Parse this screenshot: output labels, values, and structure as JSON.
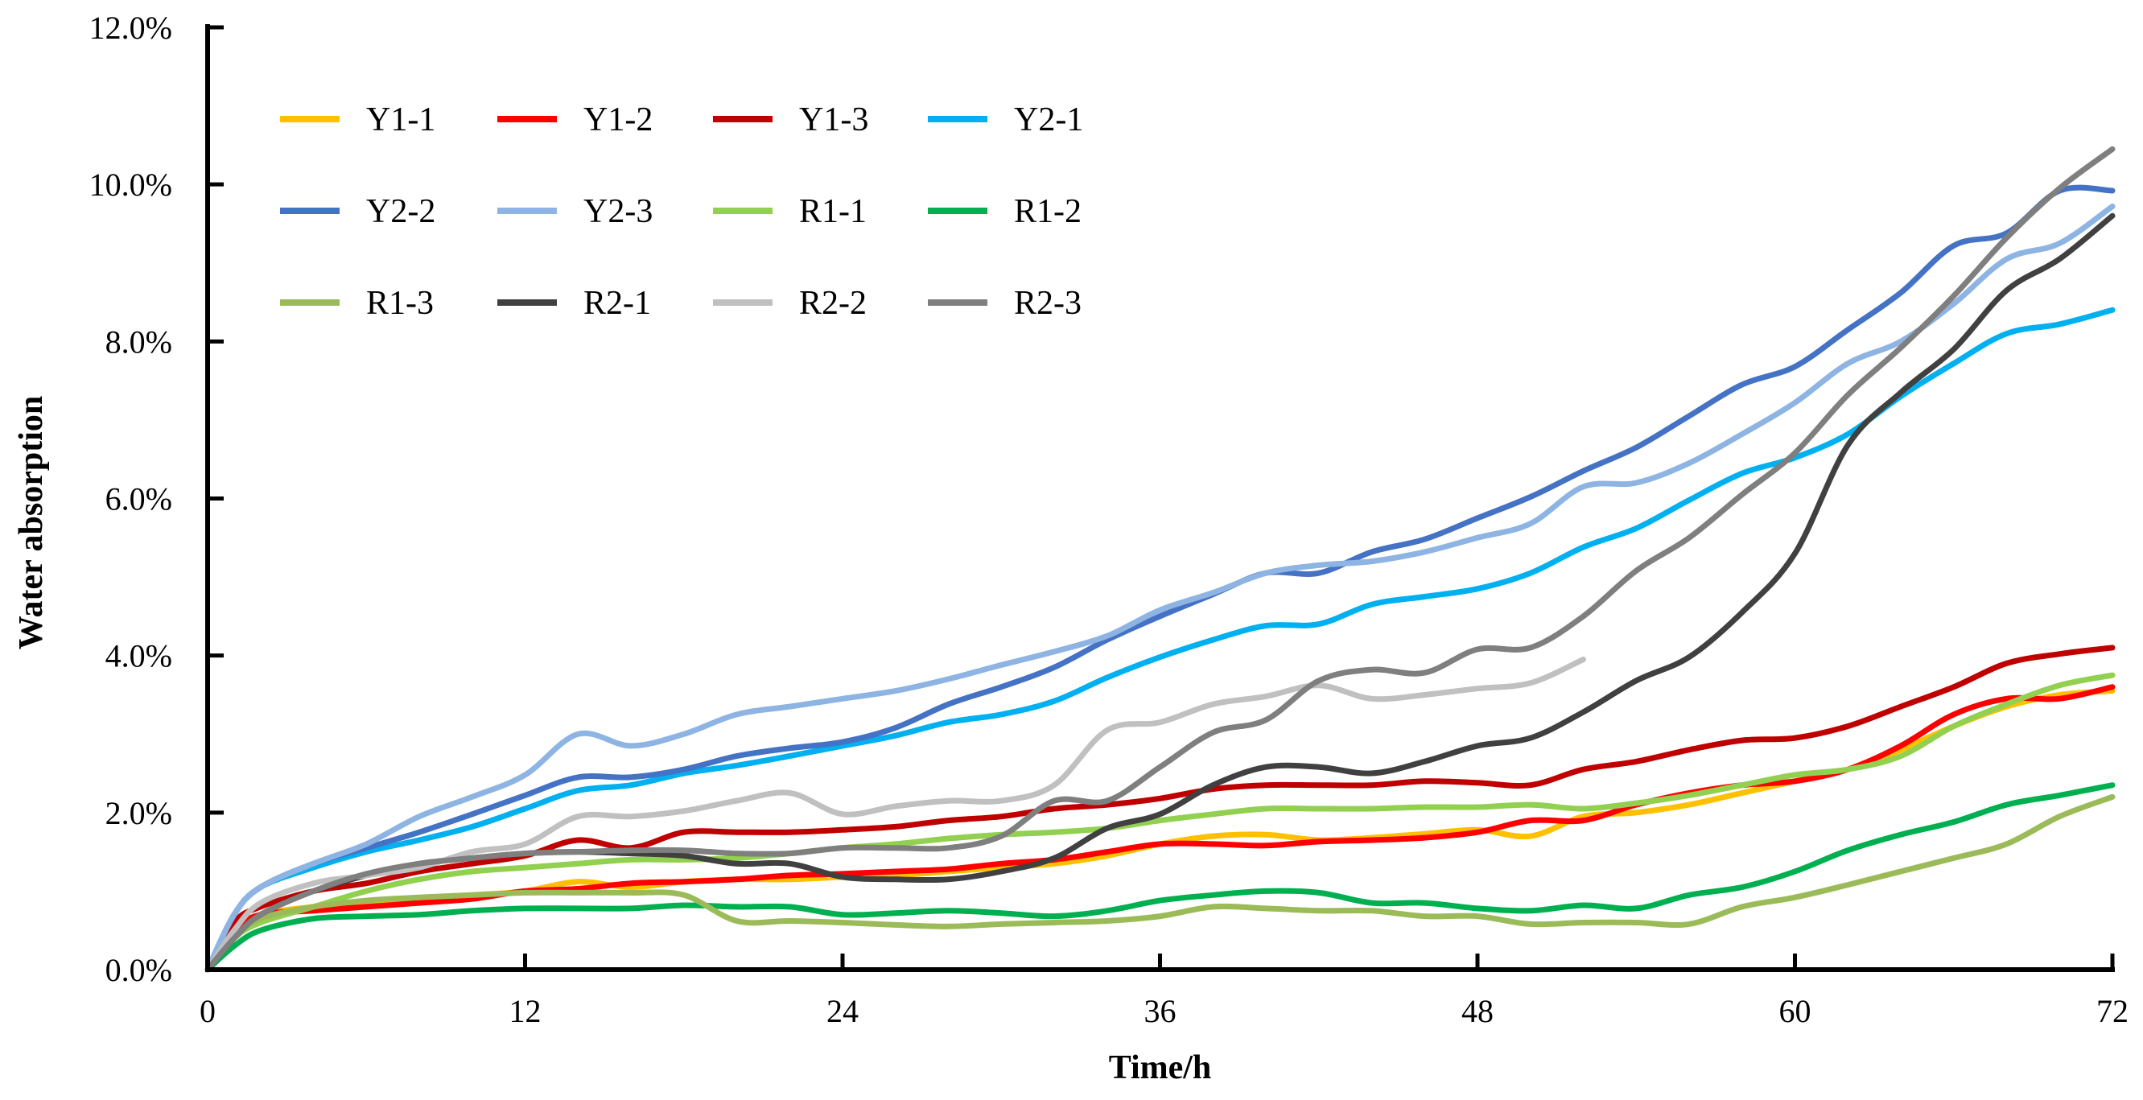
{
  "chart_data": {
    "type": "line",
    "xlabel": "Time/h",
    "ylabel": "Water absorption",
    "xlim": [
      0,
      72
    ],
    "ylim": [
      0,
      0.12
    ],
    "x_ticks": [
      "0",
      "12",
      "24",
      "36",
      "48",
      "60",
      "72"
    ],
    "y_ticks": [
      "0.0%",
      "2.0%",
      "4.0%",
      "6.0%",
      "8.0%",
      "10.0%",
      "12.0%"
    ],
    "grid": false,
    "legend_position": "top-left",
    "series": [
      {
        "name": "Y1-1",
        "color": "#ffc000",
        "x": [
          0,
          1,
          2,
          4,
          6,
          8,
          10,
          12,
          14,
          16,
          18,
          20,
          22,
          24,
          26,
          28,
          30,
          32,
          34,
          36,
          38,
          40,
          42,
          44,
          46,
          48,
          50,
          52,
          54,
          56,
          58,
          60,
          62,
          64,
          66,
          68,
          70,
          72
        ],
        "y": [
          0,
          0.005,
          0.007,
          0.008,
          0.0085,
          0.009,
          0.0095,
          0.01,
          0.0112,
          0.0105,
          0.0112,
          0.0115,
          0.0115,
          0.0118,
          0.012,
          0.0125,
          0.013,
          0.0135,
          0.0145,
          0.016,
          0.017,
          0.0172,
          0.0165,
          0.0168,
          0.0173,
          0.0178,
          0.017,
          0.0195,
          0.02,
          0.021,
          0.0225,
          0.024,
          0.0255,
          0.028,
          0.031,
          0.0335,
          0.035,
          0.0355
        ]
      },
      {
        "name": "Y1-2",
        "color": "#ff0000",
        "x": [
          0,
          1,
          2,
          4,
          6,
          8,
          10,
          12,
          14,
          16,
          18,
          20,
          22,
          24,
          26,
          28,
          30,
          32,
          34,
          36,
          38,
          40,
          42,
          44,
          46,
          48,
          50,
          52,
          54,
          56,
          58,
          60,
          62,
          64,
          66,
          68,
          70,
          72
        ],
        "y": [
          0,
          0.005,
          0.007,
          0.0075,
          0.008,
          0.0085,
          0.009,
          0.01,
          0.0103,
          0.011,
          0.0112,
          0.0115,
          0.012,
          0.0122,
          0.0125,
          0.0128,
          0.0135,
          0.014,
          0.015,
          0.016,
          0.016,
          0.0158,
          0.0163,
          0.0165,
          0.0168,
          0.0175,
          0.019,
          0.019,
          0.021,
          0.0225,
          0.0235,
          0.024,
          0.0255,
          0.0285,
          0.0325,
          0.0345,
          0.0345,
          0.036
        ]
      },
      {
        "name": "Y1-3",
        "color": "#c00000",
        "x": [
          0,
          1,
          2,
          4,
          6,
          8,
          10,
          12,
          14,
          16,
          18,
          20,
          22,
          24,
          26,
          28,
          30,
          32,
          34,
          36,
          38,
          40,
          42,
          44,
          46,
          48,
          50,
          52,
          54,
          56,
          58,
          60,
          62,
          64,
          66,
          68,
          70,
          72
        ],
        "y": [
          0,
          0.006,
          0.008,
          0.01,
          0.011,
          0.0125,
          0.0135,
          0.0145,
          0.0165,
          0.0155,
          0.0175,
          0.0175,
          0.0175,
          0.0178,
          0.0182,
          0.019,
          0.0195,
          0.0205,
          0.021,
          0.0218,
          0.023,
          0.0235,
          0.0235,
          0.0235,
          0.024,
          0.0238,
          0.0235,
          0.0255,
          0.0265,
          0.028,
          0.0292,
          0.0295,
          0.031,
          0.0335,
          0.036,
          0.039,
          0.0402,
          0.041
        ]
      },
      {
        "name": "Y2-1",
        "color": "#00b0f0",
        "x": [
          0,
          1,
          2,
          4,
          6,
          8,
          10,
          12,
          14,
          16,
          18,
          20,
          22,
          24,
          26,
          28,
          30,
          32,
          34,
          36,
          38,
          40,
          42,
          44,
          46,
          48,
          50,
          52,
          54,
          56,
          58,
          60,
          62,
          64,
          66,
          68,
          70,
          72
        ],
        "y": [
          0,
          0.007,
          0.0105,
          0.013,
          0.015,
          0.0165,
          0.0182,
          0.0205,
          0.0228,
          0.0235,
          0.025,
          0.026,
          0.0272,
          0.0285,
          0.0298,
          0.0315,
          0.0325,
          0.0342,
          0.0372,
          0.0398,
          0.042,
          0.0438,
          0.044,
          0.0465,
          0.0475,
          0.0485,
          0.0505,
          0.0538,
          0.0562,
          0.0598,
          0.0632,
          0.0652,
          0.0682,
          0.073,
          0.0772,
          0.081,
          0.0822,
          0.084
        ]
      },
      {
        "name": "Y2-2",
        "color": "#4472c4",
        "x": [
          0,
          1,
          2,
          4,
          6,
          8,
          10,
          12,
          14,
          16,
          18,
          20,
          22,
          24,
          26,
          28,
          30,
          32,
          34,
          36,
          38,
          40,
          42,
          44,
          46,
          48,
          50,
          52,
          54,
          56,
          58,
          60,
          62,
          64,
          66,
          68,
          70,
          72
        ],
        "y": [
          0,
          0.007,
          0.0105,
          0.0135,
          0.0155,
          0.0175,
          0.0198,
          0.0222,
          0.0245,
          0.0245,
          0.0255,
          0.0272,
          0.0282,
          0.029,
          0.0308,
          0.0338,
          0.036,
          0.0385,
          0.042,
          0.045,
          0.0478,
          0.0505,
          0.0505,
          0.0532,
          0.0548,
          0.0575,
          0.0602,
          0.0635,
          0.0665,
          0.0705,
          0.0745,
          0.0768,
          0.0815,
          0.0862,
          0.0922,
          0.0938,
          0.0992,
          0.0992
        ]
      },
      {
        "name": "Y2-3",
        "color": "#8eb4e3",
        "x": [
          0,
          1,
          2,
          4,
          6,
          8,
          10,
          12,
          14,
          16,
          18,
          20,
          22,
          24,
          26,
          28,
          30,
          32,
          34,
          36,
          38,
          40,
          42,
          44,
          46,
          48,
          50,
          52,
          54,
          56,
          58,
          60,
          62,
          64,
          66,
          68,
          70,
          72
        ],
        "y": [
          0,
          0.007,
          0.0105,
          0.0135,
          0.016,
          0.0195,
          0.022,
          0.0248,
          0.03,
          0.0285,
          0.03,
          0.0325,
          0.0335,
          0.0345,
          0.0355,
          0.037,
          0.0388,
          0.0405,
          0.0425,
          0.0458,
          0.048,
          0.0505,
          0.0515,
          0.052,
          0.0532,
          0.055,
          0.0568,
          0.0615,
          0.062,
          0.0645,
          0.0682,
          0.0722,
          0.0772,
          0.08,
          0.0848,
          0.0905,
          0.0925,
          0.0972
        ]
      },
      {
        "name": "R1-1",
        "color": "#92d050",
        "x": [
          0,
          1,
          2,
          4,
          6,
          8,
          10,
          12,
          14,
          16,
          18,
          20,
          22,
          24,
          26,
          28,
          30,
          32,
          34,
          36,
          38,
          40,
          42,
          44,
          46,
          48,
          50,
          52,
          54,
          56,
          58,
          60,
          62,
          64,
          66,
          68,
          70,
          72
        ],
        "y": [
          0,
          0.004,
          0.006,
          0.008,
          0.01,
          0.0115,
          0.0125,
          0.013,
          0.0135,
          0.014,
          0.014,
          0.0142,
          0.0148,
          0.0155,
          0.016,
          0.0167,
          0.0172,
          0.0175,
          0.018,
          0.019,
          0.0198,
          0.0205,
          0.0205,
          0.0205,
          0.0207,
          0.0207,
          0.021,
          0.0205,
          0.0212,
          0.0222,
          0.0235,
          0.0248,
          0.0255,
          0.0272,
          0.031,
          0.0338,
          0.0362,
          0.0375
        ]
      },
      {
        "name": "R1-2",
        "color": "#00b050",
        "x": [
          0,
          1,
          2,
          4,
          6,
          8,
          10,
          12,
          14,
          16,
          18,
          20,
          22,
          24,
          26,
          28,
          30,
          32,
          34,
          36,
          38,
          40,
          42,
          44,
          46,
          48,
          50,
          52,
          54,
          56,
          58,
          60,
          62,
          64,
          66,
          68,
          70,
          72
        ],
        "y": [
          0,
          0.003,
          0.005,
          0.0065,
          0.0068,
          0.007,
          0.0075,
          0.0078,
          0.0078,
          0.0078,
          0.0082,
          0.008,
          0.008,
          0.007,
          0.0072,
          0.0075,
          0.0072,
          0.0068,
          0.0075,
          0.0088,
          0.0095,
          0.01,
          0.0098,
          0.0085,
          0.0085,
          0.0078,
          0.0075,
          0.0082,
          0.0078,
          0.0095,
          0.0105,
          0.0125,
          0.0152,
          0.0172,
          0.0188,
          0.021,
          0.0222,
          0.0235
        ]
      },
      {
        "name": "R1-3",
        "color": "#9bbb59",
        "x": [
          0,
          1,
          2,
          4,
          6,
          8,
          10,
          12,
          14,
          16,
          18,
          20,
          22,
          24,
          26,
          28,
          30,
          32,
          34,
          36,
          38,
          40,
          42,
          44,
          46,
          48,
          50,
          52,
          54,
          56,
          58,
          60,
          62,
          64,
          66,
          68,
          70,
          72
        ],
        "y": [
          0,
          0.004,
          0.0065,
          0.008,
          0.0088,
          0.0092,
          0.0095,
          0.0098,
          0.0098,
          0.0098,
          0.0095,
          0.0062,
          0.0062,
          0.006,
          0.0057,
          0.0055,
          0.0058,
          0.006,
          0.0062,
          0.0068,
          0.008,
          0.0078,
          0.0075,
          0.0075,
          0.0068,
          0.0068,
          0.0058,
          0.006,
          0.006,
          0.0058,
          0.008,
          0.0092,
          0.0108,
          0.0125,
          0.0142,
          0.016,
          0.0195,
          0.022
        ]
      },
      {
        "name": "R2-1",
        "color": "#404040",
        "x": [
          0,
          1,
          2,
          4,
          6,
          8,
          10,
          12,
          14,
          16,
          18,
          20,
          22,
          24,
          26,
          28,
          30,
          32,
          34,
          36,
          38,
          40,
          42,
          44,
          46,
          48,
          50,
          52,
          54,
          56,
          58,
          60,
          62,
          64,
          66,
          68,
          70,
          72
        ],
        "y": [
          0,
          0.004,
          0.007,
          0.01,
          0.012,
          0.0135,
          0.0142,
          0.0148,
          0.015,
          0.0148,
          0.0145,
          0.0135,
          0.0135,
          0.0118,
          0.0115,
          0.0115,
          0.0125,
          0.0142,
          0.018,
          0.0198,
          0.0235,
          0.0258,
          0.0258,
          0.025,
          0.0265,
          0.0285,
          0.0295,
          0.0328,
          0.0368,
          0.0398,
          0.0455,
          0.053,
          0.0668,
          0.0735,
          0.079,
          0.0865,
          0.0905,
          0.096
        ]
      },
      {
        "name": "R2-2",
        "color": "#c0c0c0",
        "x": [
          0,
          1,
          2,
          4,
          6,
          8,
          10,
          12,
          14,
          16,
          18,
          20,
          22,
          24,
          26,
          28,
          30,
          32,
          34,
          36,
          38,
          40,
          42,
          44,
          46,
          48,
          50,
          52
        ],
        "y": [
          0,
          0.005,
          0.0085,
          0.011,
          0.012,
          0.013,
          0.015,
          0.016,
          0.0195,
          0.0195,
          0.0202,
          0.0215,
          0.0225,
          0.0198,
          0.0208,
          0.0215,
          0.0215,
          0.0235,
          0.0305,
          0.0315,
          0.0338,
          0.0348,
          0.0362,
          0.0345,
          0.035,
          0.0358,
          0.0365,
          0.0395
        ]
      },
      {
        "name": "R2-3",
        "color": "#7f7f7f",
        "x": [
          0,
          1,
          2,
          4,
          6,
          8,
          10,
          12,
          14,
          16,
          18,
          20,
          22,
          24,
          26,
          28,
          30,
          32,
          34,
          36,
          38,
          40,
          42,
          44,
          46,
          48,
          50,
          52,
          54,
          56,
          58,
          60,
          62,
          64,
          66,
          68,
          70,
          72
        ],
        "y": [
          0,
          0.004,
          0.007,
          0.01,
          0.0122,
          0.0135,
          0.0142,
          0.0148,
          0.015,
          0.0152,
          0.0152,
          0.0148,
          0.0148,
          0.0155,
          0.0155,
          0.0155,
          0.017,
          0.0215,
          0.0215,
          0.0258,
          0.0302,
          0.0318,
          0.0368,
          0.0382,
          0.0378,
          0.0408,
          0.041,
          0.045,
          0.0508,
          0.055,
          0.0605,
          0.0658,
          0.0732,
          0.0792,
          0.0858,
          0.0932,
          0.0995,
          0.1045
        ]
      }
    ]
  }
}
